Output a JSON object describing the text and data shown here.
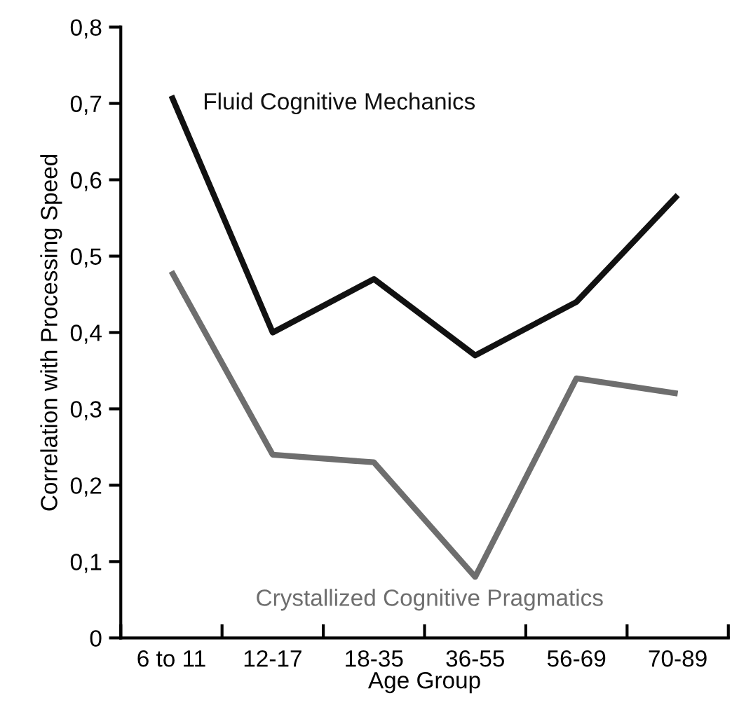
{
  "chart_data": {
    "type": "line",
    "xlabel": "Age Group",
    "ylabel": "Correlation with Processing Speed",
    "categories": [
      "6 to 11",
      "12-17",
      "18-35",
      "36-55",
      "56-69",
      "70-89"
    ],
    "series": [
      {
        "name": "Fluid Cognitive Mechanics",
        "color": "#111111",
        "values": [
          0.71,
          0.4,
          0.47,
          0.37,
          0.44,
          0.58
        ]
      },
      {
        "name": "Crystallized Cognitive Pragmatics",
        "color": "#6e6e6e",
        "values": [
          0.48,
          0.24,
          0.23,
          0.08,
          0.34,
          0.32
        ]
      }
    ],
    "ylim": [
      0,
      0.8
    ],
    "yticks": [
      0,
      {
        "value": 0.1,
        "label": "0,1"
      },
      {
        "value": 0.2,
        "label": "0,2"
      },
      {
        "value": 0.3,
        "label": "0,3"
      },
      {
        "value": 0.4,
        "label": "0,4"
      },
      {
        "value": 0.5,
        "label": "0,5"
      },
      {
        "value": 0.6,
        "label": "0,6"
      },
      {
        "value": 0.7,
        "label": "0,7"
      },
      {
        "value": 0.8,
        "label": "0,8"
      }
    ],
    "grid": false,
    "legend": false,
    "marker": "none",
    "line_style": "solid"
  }
}
